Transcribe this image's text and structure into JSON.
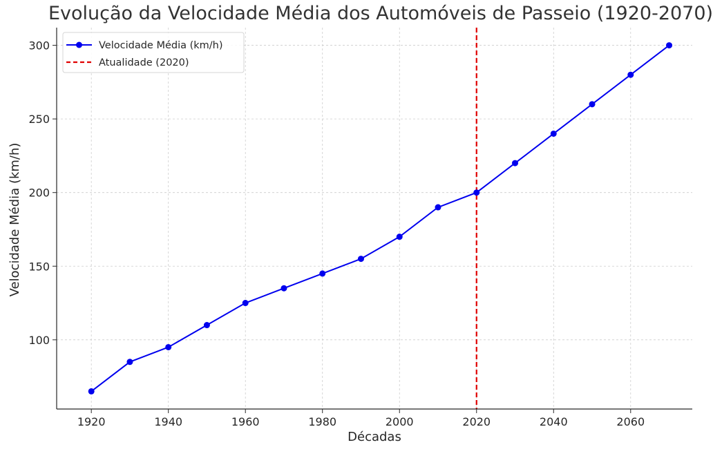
{
  "chart_data": {
    "type": "line",
    "title": "Evolução da Velocidade Média dos Automóveis de Passeio (1920-2070)",
    "xlabel": "Décadas",
    "ylabel": "Velocidade Média (km/h)",
    "x": [
      1920,
      1930,
      1940,
      1950,
      1960,
      1970,
      1980,
      1990,
      2000,
      2010,
      2020,
      2030,
      2040,
      2050,
      2060,
      2070
    ],
    "series": [
      {
        "name": "Velocidade Média (km/h)",
        "values": [
          65,
          85,
          95,
          110,
          125,
          135,
          145,
          155,
          170,
          190,
          200,
          220,
          240,
          260,
          280,
          300
        ],
        "color": "#0000ee",
        "marker": "circle"
      }
    ],
    "vline": {
      "x": 2020,
      "name": "Atualidade (2020)",
      "color": "#e00000",
      "style": "dashed"
    },
    "xticks": [
      "1920",
      "1940",
      "1960",
      "1980",
      "2000",
      "2020",
      "2040",
      "2060"
    ],
    "yticks": [
      "100",
      "150",
      "200",
      "250",
      "300"
    ],
    "xlim": [
      1911,
      2076
    ],
    "ylim": [
      53,
      312
    ],
    "grid": true,
    "legend_position": "top-left"
  }
}
